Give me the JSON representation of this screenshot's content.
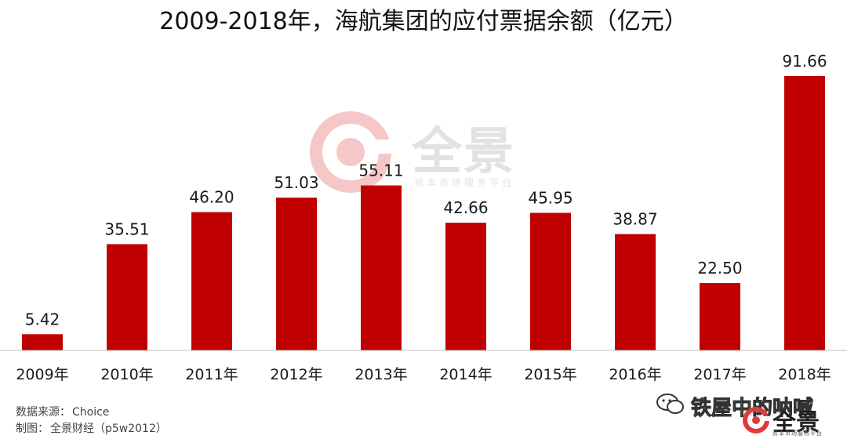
{
  "title": "2009-2018年，海航集团的应付票据余额（亿元）",
  "watermark": {
    "name": "全景",
    "subtitle": "资本市场服务平台"
  },
  "footer": {
    "source_label": "数据来源：",
    "source_value": "Choice",
    "maker_label": "制图：",
    "maker_value": "全景财经（p5w2012）"
  },
  "wechat_account": "铁屋中的呐喊",
  "brand_logo": {
    "name": "全景",
    "subtitle": "资本市场服务平台"
  },
  "colors": {
    "bar": "#c00000",
    "axis": "#bfbfbf",
    "logo_red": "#e23b3b"
  },
  "chart_data": {
    "type": "bar",
    "title": "2009-2018年，海航集团的应付票据余额（亿元）",
    "categories": [
      "2009年",
      "2010年",
      "2011年",
      "2012年",
      "2013年",
      "2014年",
      "2015年",
      "2016年",
      "2017年",
      "2018年"
    ],
    "values": [
      5.42,
      35.51,
      46.2,
      51.03,
      55.11,
      42.66,
      45.95,
      38.87,
      22.5,
      91.66
    ],
    "value_labels": [
      "5.42",
      "35.51",
      "46.20",
      "51.03",
      "55.11",
      "42.66",
      "45.95",
      "38.87",
      "22.50",
      "91.66"
    ],
    "ylim": [
      0,
      100
    ],
    "grid": false,
    "legend": "none"
  }
}
